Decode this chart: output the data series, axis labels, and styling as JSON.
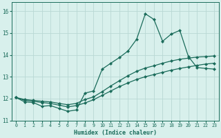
{
  "xlabel": "Humidex (Indice chaleur)",
  "bg_color": "#d8f0ec",
  "grid_color": "#b8d8d4",
  "line_color": "#1a6b5a",
  "xlim": [
    -0.5,
    23.5
  ],
  "ylim": [
    11.0,
    16.4
  ],
  "xticks": [
    0,
    1,
    2,
    3,
    4,
    5,
    6,
    7,
    8,
    9,
    10,
    11,
    12,
    13,
    14,
    15,
    16,
    17,
    18,
    19,
    20,
    21,
    22,
    23
  ],
  "yticks": [
    11,
    12,
    13,
    14,
    15,
    16
  ],
  "line_smooth_low_x": [
    0,
    1,
    2,
    3,
    4,
    5,
    6,
    7,
    8,
    9,
    10,
    11,
    12,
    13,
    14,
    15,
    16,
    17,
    18,
    19,
    20,
    21,
    22,
    23
  ],
  "line_smooth_low_y": [
    12.05,
    11.92,
    11.88,
    11.82,
    11.78,
    11.7,
    11.62,
    11.68,
    11.8,
    11.95,
    12.15,
    12.35,
    12.55,
    12.72,
    12.88,
    13.0,
    13.1,
    13.2,
    13.3,
    13.38,
    13.45,
    13.52,
    13.58,
    13.62
  ],
  "line_smooth_mid_x": [
    0,
    1,
    2,
    3,
    4,
    5,
    6,
    7,
    8,
    9,
    10,
    11,
    12,
    13,
    14,
    15,
    16,
    17,
    18,
    19,
    20,
    21,
    22,
    23
  ],
  "line_smooth_mid_y": [
    12.05,
    11.96,
    11.92,
    11.88,
    11.85,
    11.78,
    11.72,
    11.78,
    11.96,
    12.08,
    12.32,
    12.58,
    12.82,
    13.05,
    13.25,
    13.4,
    13.5,
    13.62,
    13.72,
    13.8,
    13.85,
    13.9,
    13.92,
    13.95
  ],
  "line_spiky_x": [
    0,
    1,
    2,
    3,
    4,
    5,
    6,
    7,
    8,
    9,
    10,
    11,
    12,
    13,
    14,
    15,
    16,
    17,
    18,
    19,
    20,
    21,
    22,
    23
  ],
  "line_spiky_y": [
    12.05,
    11.85,
    11.82,
    11.65,
    11.68,
    11.55,
    11.42,
    11.48,
    12.25,
    12.35,
    13.35,
    13.62,
    13.88,
    14.18,
    14.72,
    15.88,
    15.62,
    14.62,
    14.95,
    15.12,
    13.92,
    13.42,
    13.38,
    13.35
  ]
}
